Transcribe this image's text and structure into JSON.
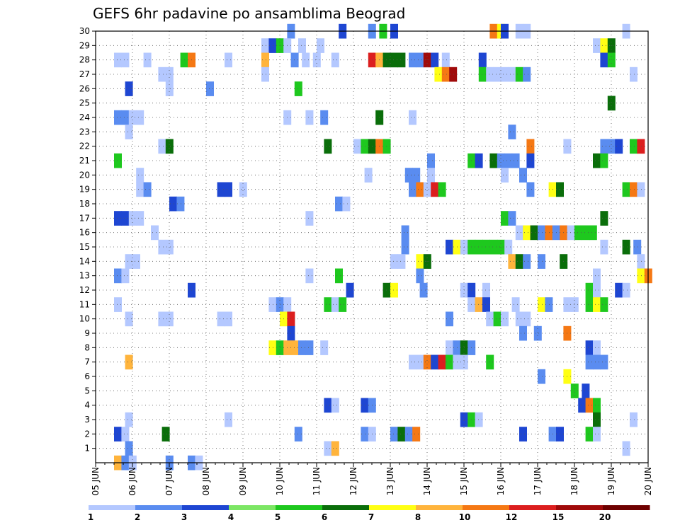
{
  "chart_data": {
    "type": "heatmap",
    "title": "GEFS 6hr padavine po ansamblima Beograd",
    "y_tick_labels": [
      "1",
      "2",
      "3",
      "4",
      "5",
      "6",
      "7",
      "8",
      "9",
      "10",
      "11",
      "12",
      "13",
      "14",
      "15",
      "16",
      "17",
      "18",
      "19",
      "20",
      "21",
      "22",
      "23",
      "24",
      "25",
      "26",
      "27",
      "28",
      "29",
      "30"
    ],
    "x_tick_labels": [
      "05 JUN",
      "06 JUN",
      "07 JUN",
      "08 JUN",
      "09 JUN",
      "10 JUN",
      "11 JUN",
      "12 JUN",
      "13 JUN",
      "14 JUN",
      "15 JUN",
      "16 JUN",
      "17 JUN",
      "18 JUN",
      "19 JUN",
      "20 JUN"
    ],
    "x_range_days": [
      0,
      15
    ],
    "y_range": [
      0,
      30
    ],
    "grid": true,
    "legend_position": "bottom",
    "colorbar": {
      "levels": [
        1,
        2,
        3,
        4,
        5,
        6,
        7,
        8,
        10,
        12,
        15,
        20
      ],
      "level_labels": [
        "1",
        "2",
        "3",
        "4",
        "5",
        "6",
        "7",
        "8",
        "10",
        "12",
        "15",
        "20"
      ],
      "colors": [
        "#b4c8ff",
        "#5a8cf0",
        "#1e46d2",
        "#7ce664",
        "#1ec81e",
        "#0a6e0a",
        "#ffff14",
        "#ffb43c",
        "#f57814",
        "#dc1e1e",
        "#a00a0a",
        "#6e0000"
      ]
    },
    "cells": [
      [
        30,
        5.3,
        2
      ],
      [
        30,
        6.7,
        3
      ],
      [
        30,
        7.5,
        2
      ],
      [
        30,
        7.8,
        5
      ],
      [
        30,
        8.1,
        3
      ],
      [
        30,
        10.8,
        10
      ],
      [
        30,
        11.0,
        7
      ],
      [
        30,
        11.1,
        3
      ],
      [
        30,
        11.5,
        1
      ],
      [
        30,
        11.7,
        1
      ],
      [
        30,
        14.4,
        1
      ],
      [
        29,
        4.6,
        1
      ],
      [
        29,
        4.8,
        3
      ],
      [
        29,
        5.0,
        5
      ],
      [
        29,
        5.2,
        1
      ],
      [
        29,
        5.6,
        1
      ],
      [
        29,
        6.1,
        1
      ],
      [
        29,
        13.6,
        1
      ],
      [
        29,
        13.8,
        7
      ],
      [
        29,
        14.0,
        6
      ],
      [
        28,
        0.6,
        1
      ],
      [
        28,
        0.8,
        1
      ],
      [
        28,
        1.4,
        1
      ],
      [
        28,
        2.4,
        5
      ],
      [
        28,
        2.6,
        10
      ],
      [
        28,
        3.6,
        1
      ],
      [
        28,
        4.6,
        8
      ],
      [
        28,
        5.4,
        2
      ],
      [
        28,
        5.7,
        1
      ],
      [
        28,
        6.0,
        1
      ],
      [
        28,
        6.5,
        1
      ],
      [
        28,
        7.5,
        12
      ],
      [
        28,
        7.7,
        8
      ],
      [
        28,
        7.9,
        6
      ],
      [
        28,
        8.1,
        6
      ],
      [
        28,
        8.3,
        6
      ],
      [
        28,
        8.6,
        2
      ],
      [
        28,
        8.8,
        2
      ],
      [
        28,
        9.0,
        15
      ],
      [
        28,
        9.2,
        3
      ],
      [
        28,
        9.5,
        1
      ],
      [
        28,
        10.5,
        3
      ],
      [
        28,
        13.8,
        3
      ],
      [
        28,
        14.0,
        5
      ],
      [
        27,
        1.8,
        1
      ],
      [
        27,
        2.0,
        1
      ],
      [
        27,
        4.6,
        1
      ],
      [
        27,
        9.3,
        7
      ],
      [
        27,
        9.5,
        10
      ],
      [
        27,
        9.7,
        15
      ],
      [
        27,
        10.5,
        5
      ],
      [
        27,
        10.7,
        1
      ],
      [
        27,
        10.9,
        1
      ],
      [
        27,
        11.1,
        1
      ],
      [
        27,
        11.3,
        1
      ],
      [
        27,
        11.5,
        5
      ],
      [
        27,
        11.7,
        2
      ],
      [
        27,
        14.6,
        1
      ],
      [
        26,
        0.9,
        3
      ],
      [
        26,
        2.0,
        1
      ],
      [
        26,
        3.1,
        2
      ],
      [
        26,
        5.5,
        5
      ],
      [
        25,
        14.0,
        6
      ],
      [
        24,
        0.6,
        2
      ],
      [
        24,
        0.8,
        2
      ],
      [
        24,
        1.0,
        1
      ],
      [
        24,
        1.2,
        1
      ],
      [
        24,
        5.2,
        1
      ],
      [
        24,
        5.8,
        1
      ],
      [
        24,
        6.2,
        2
      ],
      [
        24,
        7.7,
        6
      ],
      [
        24,
        8.6,
        1
      ],
      [
        23,
        0.9,
        1
      ],
      [
        23,
        11.3,
        2
      ],
      [
        22,
        1.8,
        1
      ],
      [
        22,
        2.0,
        6
      ],
      [
        22,
        6.3,
        6
      ],
      [
        22,
        7.1,
        1
      ],
      [
        22,
        7.3,
        5
      ],
      [
        22,
        7.5,
        6
      ],
      [
        22,
        7.7,
        10
      ],
      [
        22,
        7.9,
        5
      ],
      [
        22,
        11.8,
        10
      ],
      [
        22,
        12.8,
        1
      ],
      [
        22,
        13.8,
        2
      ],
      [
        22,
        14.0,
        2
      ],
      [
        22,
        14.2,
        3
      ],
      [
        22,
        14.6,
        5
      ],
      [
        22,
        14.8,
        12
      ],
      [
        21,
        0.6,
        5
      ],
      [
        21,
        9.1,
        2
      ],
      [
        21,
        10.2,
        5
      ],
      [
        21,
        10.4,
        3
      ],
      [
        21,
        10.8,
        6
      ],
      [
        21,
        11.0,
        2
      ],
      [
        21,
        11.2,
        2
      ],
      [
        21,
        11.4,
        2
      ],
      [
        21,
        11.8,
        3
      ],
      [
        21,
        13.6,
        6
      ],
      [
        21,
        13.8,
        5
      ],
      [
        20,
        1.2,
        1
      ],
      [
        20,
        7.4,
        1
      ],
      [
        20,
        8.5,
        2
      ],
      [
        20,
        8.7,
        2
      ],
      [
        20,
        9.1,
        1
      ],
      [
        20,
        11.1,
        1
      ],
      [
        20,
        11.6,
        2
      ],
      [
        19,
        1.2,
        1
      ],
      [
        19,
        1.4,
        2
      ],
      [
        19,
        3.4,
        3
      ],
      [
        19,
        3.6,
        3
      ],
      [
        19,
        4.0,
        1
      ],
      [
        19,
        8.6,
        2
      ],
      [
        19,
        8.8,
        10
      ],
      [
        19,
        9.0,
        1
      ],
      [
        19,
        9.2,
        12
      ],
      [
        19,
        9.4,
        5
      ],
      [
        19,
        11.8,
        2
      ],
      [
        19,
        12.4,
        7
      ],
      [
        19,
        12.6,
        6
      ],
      [
        19,
        14.4,
        5
      ],
      [
        19,
        14.6,
        10
      ],
      [
        19,
        14.8,
        1
      ],
      [
        18,
        2.1,
        3
      ],
      [
        18,
        2.3,
        2
      ],
      [
        18,
        6.6,
        2
      ],
      [
        18,
        6.8,
        1
      ],
      [
        17,
        0.6,
        3
      ],
      [
        17,
        0.8,
        3
      ],
      [
        17,
        1.0,
        1
      ],
      [
        17,
        1.2,
        1
      ],
      [
        17,
        5.8,
        1
      ],
      [
        17,
        11.1,
        5
      ],
      [
        17,
        11.3,
        2
      ],
      [
        17,
        13.8,
        6
      ],
      [
        16,
        1.6,
        1
      ],
      [
        16,
        8.4,
        2
      ],
      [
        16,
        11.5,
        1
      ],
      [
        16,
        11.7,
        7
      ],
      [
        16,
        11.9,
        6
      ],
      [
        16,
        12.1,
        2
      ],
      [
        16,
        12.3,
        10
      ],
      [
        16,
        12.5,
        2
      ],
      [
        16,
        12.7,
        10
      ],
      [
        16,
        12.9,
        1
      ],
      [
        16,
        13.1,
        5
      ],
      [
        16,
        13.3,
        5
      ],
      [
        16,
        13.5,
        5
      ],
      [
        15,
        1.8,
        1
      ],
      [
        15,
        2.0,
        1
      ],
      [
        15,
        8.4,
        2
      ],
      [
        15,
        9.6,
        3
      ],
      [
        15,
        9.8,
        7
      ],
      [
        15,
        10.0,
        1
      ],
      [
        15,
        10.2,
        5
      ],
      [
        15,
        10.4,
        5
      ],
      [
        15,
        10.6,
        5
      ],
      [
        15,
        10.8,
        5
      ],
      [
        15,
        11.0,
        5
      ],
      [
        15,
        11.2,
        1
      ],
      [
        15,
        13.8,
        1
      ],
      [
        15,
        14.4,
        6
      ],
      [
        15,
        14.7,
        2
      ],
      [
        14,
        0.9,
        1
      ],
      [
        14,
        1.1,
        1
      ],
      [
        14,
        8.1,
        1
      ],
      [
        14,
        8.3,
        1
      ],
      [
        14,
        8.8,
        7
      ],
      [
        14,
        9.0,
        6
      ],
      [
        14,
        11.3,
        8
      ],
      [
        14,
        11.5,
        6
      ],
      [
        14,
        11.7,
        2
      ],
      [
        14,
        12.1,
        2
      ],
      [
        14,
        12.7,
        6
      ],
      [
        14,
        14.8,
        1
      ],
      [
        13,
        0.6,
        2
      ],
      [
        13,
        0.8,
        1
      ],
      [
        13,
        5.8,
        1
      ],
      [
        13,
        6.6,
        5
      ],
      [
        13,
        8.8,
        2
      ],
      [
        13,
        13.6,
        1
      ],
      [
        13,
        14.8,
        7
      ],
      [
        13,
        15.0,
        10
      ],
      [
        12,
        2.6,
        3
      ],
      [
        12,
        6.9,
        3
      ],
      [
        12,
        7.9,
        6
      ],
      [
        12,
        8.1,
        7
      ],
      [
        12,
        8.9,
        2
      ],
      [
        12,
        10.0,
        1
      ],
      [
        12,
        10.2,
        3
      ],
      [
        12,
        10.6,
        1
      ],
      [
        12,
        13.4,
        5
      ],
      [
        12,
        13.6,
        1
      ],
      [
        12,
        14.2,
        3
      ],
      [
        12,
        14.4,
        1
      ],
      [
        11,
        0.6,
        1
      ],
      [
        11,
        4.8,
        1
      ],
      [
        11,
        5.0,
        2
      ],
      [
        11,
        5.2,
        1
      ],
      [
        11,
        6.3,
        5
      ],
      [
        11,
        6.5,
        1
      ],
      [
        11,
        6.7,
        5
      ],
      [
        11,
        10.2,
        1
      ],
      [
        11,
        10.4,
        8
      ],
      [
        11,
        10.6,
        3
      ],
      [
        11,
        11.4,
        1
      ],
      [
        11,
        12.1,
        7
      ],
      [
        11,
        12.3,
        2
      ],
      [
        11,
        12.8,
        1
      ],
      [
        11,
        13.0,
        1
      ],
      [
        11,
        13.4,
        5
      ],
      [
        11,
        13.6,
        7
      ],
      [
        11,
        13.8,
        5
      ],
      [
        10,
        0.9,
        1
      ],
      [
        10,
        1.8,
        1
      ],
      [
        10,
        2.0,
        1
      ],
      [
        10,
        3.4,
        1
      ],
      [
        10,
        3.6,
        1
      ],
      [
        10,
        5.1,
        7
      ],
      [
        10,
        5.3,
        12
      ],
      [
        10,
        9.6,
        2
      ],
      [
        10,
        10.7,
        1
      ],
      [
        10,
        10.9,
        5
      ],
      [
        10,
        11.1,
        1
      ],
      [
        10,
        11.5,
        1
      ],
      [
        10,
        11.7,
        1
      ],
      [
        9,
        5.3,
        3
      ],
      [
        9,
        11.6,
        2
      ],
      [
        9,
        12.0,
        2
      ],
      [
        9,
        12.8,
        10
      ],
      [
        8,
        4.8,
        7
      ],
      [
        8,
        5.0,
        5
      ],
      [
        8,
        5.2,
        8
      ],
      [
        8,
        5.4,
        8
      ],
      [
        8,
        5.6,
        2
      ],
      [
        8,
        5.8,
        2
      ],
      [
        8,
        6.2,
        1
      ],
      [
        8,
        9.6,
        1
      ],
      [
        8,
        9.8,
        2
      ],
      [
        8,
        10.0,
        6
      ],
      [
        8,
        10.2,
        2
      ],
      [
        8,
        13.4,
        3
      ],
      [
        8,
        13.6,
        1
      ],
      [
        7,
        0.9,
        8
      ],
      [
        7,
        8.6,
        1
      ],
      [
        7,
        8.8,
        1
      ],
      [
        7,
        9.0,
        10
      ],
      [
        7,
        9.2,
        3
      ],
      [
        7,
        9.4,
        12
      ],
      [
        7,
        9.6,
        5
      ],
      [
        7,
        9.8,
        1
      ],
      [
        7,
        10.0,
        1
      ],
      [
        7,
        10.7,
        5
      ],
      [
        7,
        13.4,
        2
      ],
      [
        7,
        13.6,
        2
      ],
      [
        7,
        13.8,
        2
      ],
      [
        6,
        12.1,
        2
      ],
      [
        6,
        12.8,
        7
      ],
      [
        5,
        13.0,
        5
      ],
      [
        5,
        13.3,
        3
      ],
      [
        4,
        6.3,
        3
      ],
      [
        4,
        6.5,
        1
      ],
      [
        4,
        7.3,
        3
      ],
      [
        4,
        7.5,
        2
      ],
      [
        4,
        13.2,
        3
      ],
      [
        4,
        13.4,
        10
      ],
      [
        4,
        13.6,
        5
      ],
      [
        3,
        0.9,
        1
      ],
      [
        3,
        3.6,
        1
      ],
      [
        3,
        10.0,
        3
      ],
      [
        3,
        10.2,
        5
      ],
      [
        3,
        10.4,
        1
      ],
      [
        3,
        13.6,
        6
      ],
      [
        3,
        14.6,
        1
      ],
      [
        2,
        0.6,
        3
      ],
      [
        2,
        0.8,
        1
      ],
      [
        2,
        1.9,
        6
      ],
      [
        2,
        5.5,
        2
      ],
      [
        2,
        7.3,
        2
      ],
      [
        2,
        7.5,
        1
      ],
      [
        2,
        8.1,
        2
      ],
      [
        2,
        8.3,
        6
      ],
      [
        2,
        8.5,
        2
      ],
      [
        2,
        8.7,
        10
      ],
      [
        2,
        11.6,
        3
      ],
      [
        2,
        12.4,
        2
      ],
      [
        2,
        12.6,
        3
      ],
      [
        2,
        13.4,
        5
      ],
      [
        2,
        13.6,
        1
      ],
      [
        1,
        0.9,
        2
      ],
      [
        1,
        6.3,
        1
      ],
      [
        1,
        6.5,
        8
      ],
      [
        1,
        14.4,
        1
      ],
      [
        0,
        0.6,
        8
      ],
      [
        0,
        0.8,
        2
      ],
      [
        0,
        1.0,
        1
      ],
      [
        0,
        2.0,
        2
      ],
      [
        0,
        2.6,
        2
      ],
      [
        0,
        2.8,
        1
      ]
    ]
  }
}
